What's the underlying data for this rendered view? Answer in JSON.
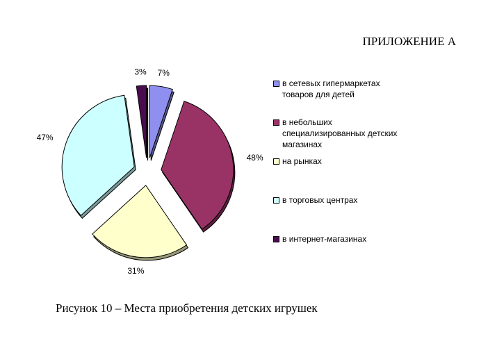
{
  "heading": "ПРИЛОЖЕНИЕ А",
  "caption": "Рисунок 10 – Места приобретения детских игрушек",
  "chart_data": {
    "type": "pie",
    "title": "",
    "series": [
      {
        "name": "в сетевых гипермаркетах товаров для детей",
        "value": 7,
        "label": "7%",
        "color": "#8f8fef"
      },
      {
        "name": "в небольших специализированных детских магазинах",
        "value": 48,
        "label": "48%",
        "color": "#993366"
      },
      {
        "name": "на рынках",
        "value": 31,
        "label": "31%",
        "color": "#ffffcc"
      },
      {
        "name": "в торговых центрах",
        "value": 47,
        "label": "47%",
        "color": "#ccffff"
      },
      {
        "name": "в интернет-магазинах",
        "value": 3,
        "label": "3%",
        "color": "#4b0b4f"
      }
    ],
    "legend_position": "right"
  }
}
